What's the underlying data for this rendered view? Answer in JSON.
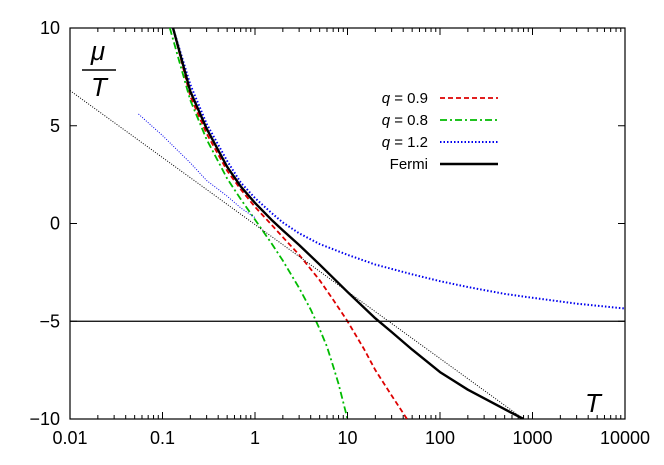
{
  "chart_data": {
    "type": "line",
    "title": "",
    "xlabel": "T",
    "ylabel": "μ/T",
    "ylabel_parts": {
      "numerator": "μ",
      "denominator": "T"
    },
    "x_scale": "log",
    "xlim": [
      0.01,
      10000
    ],
    "ylim": [
      -10,
      10
    ],
    "x_ticks": [
      0.01,
      0.1,
      1,
      10,
      100,
      1000,
      10000
    ],
    "x_tick_labels": [
      "0.01",
      "0.1",
      "1",
      "10",
      "100",
      "1000",
      "10000"
    ],
    "y_ticks": [
      -10,
      -5,
      0,
      5,
      10
    ],
    "y_tick_labels": [
      "−10",
      "−5",
      "0",
      "5",
      "10"
    ],
    "grid": false,
    "legend_position": "top-right",
    "series": [
      {
        "name": "q = 0.9",
        "label_prefix": "q",
        "label_value": " = 0.9",
        "color": "#dd0000",
        "style": "dashed",
        "x": [
          0.13,
          0.2,
          0.3,
          0.5,
          0.7,
          1,
          1.5,
          2,
          3,
          5,
          7,
          10,
          15,
          20,
          30,
          50
        ],
        "y": [
          10,
          6.5,
          4.6,
          2.7,
          1.75,
          0.85,
          -0.05,
          -0.7,
          -1.6,
          -2.9,
          -3.9,
          -5.0,
          -6.4,
          -7.5,
          -8.8,
          -10.4
        ]
      },
      {
        "name": "q = 0.8",
        "label_prefix": "q",
        "label_value": " = 0.8",
        "color": "#00bb00",
        "style": "dash-dot",
        "x": [
          0.12,
          0.2,
          0.3,
          0.5,
          0.7,
          1,
          1.5,
          2,
          3,
          4,
          5,
          6,
          7,
          8,
          10
        ],
        "y": [
          10,
          6.3,
          4.3,
          2.3,
          1.25,
          0.2,
          -1.0,
          -1.9,
          -3.3,
          -4.4,
          -5.4,
          -6.3,
          -7.3,
          -8.2,
          -10.0
        ]
      },
      {
        "name": "q = 1.2",
        "label_prefix": "q",
        "label_value": " = 1.2",
        "color": "#0000ee",
        "style": "dotted",
        "x": [
          0.13,
          0.2,
          0.3,
          0.5,
          0.7,
          1,
          1.5,
          2,
          3,
          5,
          10,
          20,
          50,
          100,
          200,
          500,
          1000,
          3000,
          10000
        ],
        "y": [
          10,
          7.1,
          5.1,
          3.2,
          2.1,
          1.3,
          0.55,
          0.05,
          -0.5,
          -1.05,
          -1.6,
          -2.1,
          -2.6,
          -2.95,
          -3.25,
          -3.6,
          -3.8,
          -4.1,
          -4.35
        ]
      },
      {
        "name": "q = 1.2 (thin)",
        "legend": false,
        "color": "#0000ee",
        "style": "dotted-thin",
        "x": [
          0.055,
          0.1,
          0.2,
          0.3,
          0.5,
          0.7,
          1
        ],
        "y": [
          5.6,
          4.5,
          3.1,
          2.2,
          1.4,
          0.8,
          0.3
        ]
      },
      {
        "name": "Fermi",
        "color": "#000000",
        "style": "solid",
        "x": [
          0.13,
          0.2,
          0.3,
          0.5,
          0.7,
          1,
          1.5,
          2,
          3,
          5,
          10,
          20,
          30,
          50,
          100,
          200,
          500,
          800
        ],
        "y": [
          10,
          6.75,
          4.85,
          2.9,
          1.9,
          1.05,
          0.2,
          -0.35,
          -1.1,
          -2.1,
          -3.5,
          -4.85,
          -5.55,
          -6.45,
          -7.6,
          -8.5,
          -9.5,
          -10.0
        ]
      },
      {
        "name": "asymptote",
        "legend": false,
        "color": "#000000",
        "style": "dotted-thin",
        "x": [
          0.01,
          800
        ],
        "y": [
          6.8,
          -10.0
        ]
      },
      {
        "name": "reference line",
        "legend": false,
        "color": "#000000",
        "style": "solid-thin",
        "x": [
          0.01,
          10000
        ],
        "y": [
          -5,
          -5
        ]
      }
    ]
  }
}
